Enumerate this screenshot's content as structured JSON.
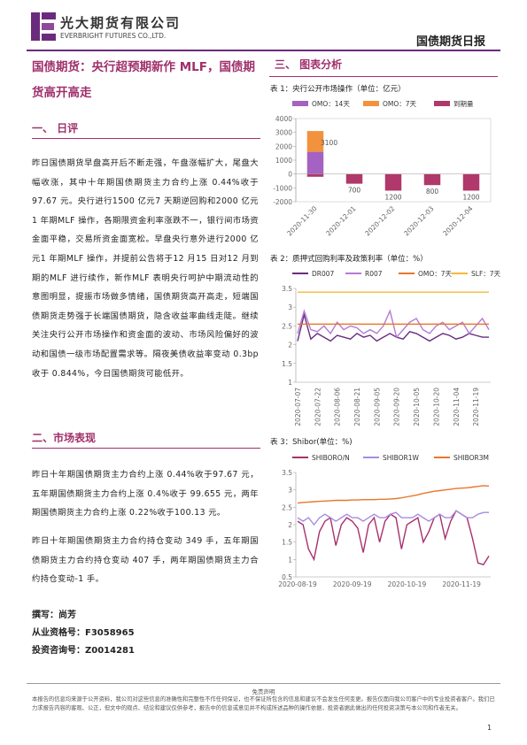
{
  "header": {
    "company_cn": "光大期货有限公司",
    "company_en": "EVERBRIGHT FUTURES CO.,LTD.",
    "report": "国债期货日报"
  },
  "title": "国债期货：央行超预期新作 MLF，国债期货高开高走",
  "section1": {
    "heading": "一、 日评",
    "paragraphs": [
      "昨日国债期货早盘高开后不断走强，午盘涨幅扩大，尾盘大幅收涨，其中十年期国债期货主力合约上涨 0.44%收于 97.67 元。央行进行1500 亿元7 天期逆回购和2000 亿元1 年期MLF 操作，各期限资金利率涨跌不一，银行间市场资金面平稳，交易所资金面宽松。早盘央行意外进行2000 亿元1 年期MLF 操作，并提前公告将于12 月15 日对12 月到期的MLF 进行续作，新作MLF 表明央行呵护中期流动性的意图明显，提振市场做多情绪，国债期货高开高走，短端国债期货走势强于长端国债期货，隐含收益率曲线走陡。继续关注央行公开市场操作和资金面的波动、市场风险偏好的波动和国债一级市场配置需求等。隔夜美债收益率变动 0.3bp 收于 0.844%，今日国债期货可能低开。"
    ]
  },
  "section2": {
    "heading": "二、市场表现",
    "paragraphs": [
      "昨日十年期国债期货主力合约上涨 0.44%收于97.67 元，五年期国债期货主力合约上涨 0.4%收于 99.655 元，两年期国债期货主力合约上涨 0.22%收于100.13 元。",
      "昨日十年期国债期货主力合约持仓变动 349 手，五年期国债期货主力合约持仓变动 407 手，两年期国债期货主力合约持仓变动-1 手。"
    ]
  },
  "author": [
    "撰写：尚芳",
    "从业资格号：F3058965",
    "投资咨询号：Z0014281"
  ],
  "section3": {
    "heading": "三、 图表分析"
  },
  "chart_data": [
    {
      "type": "bar",
      "title": "表 1：央行公开市场操作（单位：亿元）",
      "categories": [
        "2020-11-30",
        "2020-12-01",
        "2020-12-02",
        "2020-12-03",
        "2020-12-04"
      ],
      "series": [
        {
          "name": "OMO：14天",
          "color": "#a462c2",
          "values": [
            1600,
            null,
            null,
            null,
            null
          ]
        },
        {
          "name": "OMO：7天",
          "color": "#f2923c",
          "values": [
            1500,
            null,
            null,
            null,
            null
          ]
        },
        {
          "name": "到期量",
          "color": "#b0386a",
          "values": [
            -200,
            -700,
            -1200,
            -800,
            -1200
          ],
          "value_labels": [
            null,
            "700",
            "1200",
            "800",
            "1200"
          ]
        }
      ],
      "annotation": "3100",
      "ylim": [
        -2000,
        4000
      ],
      "yticks": [
        -2000,
        -1000,
        0,
        1000,
        2000,
        3000,
        4000
      ],
      "grid": false
    },
    {
      "type": "line",
      "title": "表 2：质押式回购利率及政策利率（单位：%）",
      "categories": [
        "2020-07-07",
        null,
        null,
        "2020-07-22",
        null,
        null,
        "2020-08-06",
        null,
        null,
        "2020-08-21",
        null,
        null,
        "2020-09-05",
        null,
        null,
        "2020-09-20",
        null,
        null,
        "2020-10-05",
        null,
        null,
        "2020-10-20",
        null,
        null,
        "2020-11-04",
        null,
        null,
        "2020-11-19",
        null,
        null
      ],
      "series": [
        {
          "name": "DR007",
          "color": "#6a2c80",
          "values": [
            2.1,
            2.8,
            2.15,
            2.3,
            2.2,
            2.1,
            2.25,
            2.2,
            2.15,
            2.3,
            2.2,
            2.25,
            2.1,
            2.2,
            2.3,
            2.2,
            2.15,
            2.35,
            2.3,
            2.2,
            2.1,
            2.2,
            2.3,
            2.25,
            2.15,
            2.2,
            2.3,
            2.25,
            2.2,
            2.2
          ]
        },
        {
          "name": "R007",
          "color": "#b57ad6",
          "values": [
            2.3,
            2.9,
            2.4,
            2.35,
            2.5,
            2.3,
            2.6,
            2.4,
            2.5,
            2.45,
            2.3,
            2.4,
            2.3,
            2.5,
            2.9,
            2.2,
            2.4,
            2.6,
            2.7,
            2.4,
            2.3,
            2.5,
            2.6,
            2.4,
            2.5,
            2.6,
            2.3,
            2.5,
            2.7,
            2.4
          ]
        },
        {
          "name": "OMO：7天",
          "color": "#e8772a",
          "values": [
            2.55,
            2.55,
            2.55,
            2.55,
            2.55,
            2.55,
            2.55,
            2.55,
            2.55,
            2.55,
            2.55,
            2.55,
            2.55,
            2.55,
            2.55,
            2.55,
            2.55,
            2.55,
            2.55,
            2.55,
            2.55,
            2.55,
            2.55,
            2.55,
            2.55,
            2.55,
            2.55,
            2.55,
            2.55,
            2.55
          ]
        },
        {
          "name": "SLF：7天",
          "color": "#f5b939",
          "values": [
            3.4,
            3.4,
            3.4,
            3.4,
            3.4,
            3.4,
            3.4,
            3.4,
            3.4,
            3.4,
            3.4,
            3.4,
            3.4,
            3.4,
            3.4,
            3.4,
            3.4,
            3.4,
            3.4,
            3.4,
            3.4,
            3.4,
            3.4,
            3.4,
            3.4,
            3.4,
            3.4,
            3.4,
            3.4,
            3.4
          ]
        }
      ],
      "ylim": [
        1,
        3.5
      ],
      "yticks": [
        1,
        1.5,
        2,
        2.5,
        3,
        3.5
      ],
      "grid": false
    },
    {
      "type": "line",
      "title": "表 3：Shibor(单位：%)",
      "categories": [
        "2020-08-19",
        null,
        null,
        null,
        null,
        null,
        null,
        null,
        null,
        null,
        "2020-09-19",
        null,
        null,
        null,
        null,
        null,
        null,
        null,
        null,
        null,
        "2020-10-19",
        null,
        null,
        null,
        null,
        null,
        null,
        null,
        null,
        null,
        "2020-11-19",
        null,
        null,
        null,
        null,
        null
      ],
      "series": [
        {
          "name": "SHIBORO/N",
          "color": "#a8306e",
          "values": [
            2.1,
            2.0,
            1.3,
            1.0,
            1.8,
            2.1,
            2.2,
            1.4,
            2.0,
            2.2,
            2.1,
            1.9,
            1.2,
            2.0,
            2.2,
            1.5,
            2.1,
            2.3,
            2.2,
            1.3,
            2.0,
            2.1,
            2.2,
            1.5,
            1.8,
            2.2,
            2.3,
            1.6,
            2.1,
            2.4,
            2.3,
            2.2,
            1.6,
            0.9,
            0.85,
            1.1
          ]
        },
        {
          "name": "SHIBOR1W",
          "color": "#a88be0",
          "values": [
            2.2,
            2.1,
            2.2,
            2.0,
            2.2,
            2.3,
            2.2,
            2.1,
            2.2,
            2.3,
            2.2,
            2.2,
            2.1,
            2.2,
            2.3,
            2.2,
            2.2,
            2.3,
            2.35,
            2.2,
            2.2,
            2.2,
            2.3,
            2.2,
            2.1,
            2.2,
            2.3,
            2.2,
            2.2,
            2.4,
            2.3,
            2.2,
            2.2,
            2.3,
            2.35,
            2.35
          ]
        },
        {
          "name": "SHIBOR3M",
          "color": "#e8772a",
          "values": [
            2.62,
            2.64,
            2.65,
            2.66,
            2.67,
            2.68,
            2.69,
            2.7,
            2.7,
            2.7,
            2.71,
            2.71,
            2.72,
            2.72,
            2.72,
            2.73,
            2.73,
            2.74,
            2.75,
            2.77,
            2.8,
            2.83,
            2.86,
            2.9,
            2.93,
            2.96,
            2.98,
            3.0,
            3.02,
            3.04,
            3.05,
            3.06,
            3.08,
            3.1,
            3.12,
            3.11
          ]
        }
      ],
      "ylim": [
        0.5,
        3.5
      ],
      "yticks": [
        0.5,
        1,
        1.5,
        2,
        2.5,
        3,
        3.5
      ],
      "grid": false
    }
  ],
  "footer": {
    "disclaimer_title": "免责声明",
    "disclaimer": "本报告的信息均来源于公开资料，我公司对这些信息的准确性和完整性不作任何保证，也不保证所包含的信息和建议不会发生任何变更。报告仅面向我公司客户中的专业投资者客户。我们已力求报告内容的客观、公正，但文中的观点、结论和建议仅供参考，报告中的信息或意见并不构成所述品种的操作依据，投资者据此做出的任何投资决策与本公司和作者无关。",
    "page": "1"
  }
}
